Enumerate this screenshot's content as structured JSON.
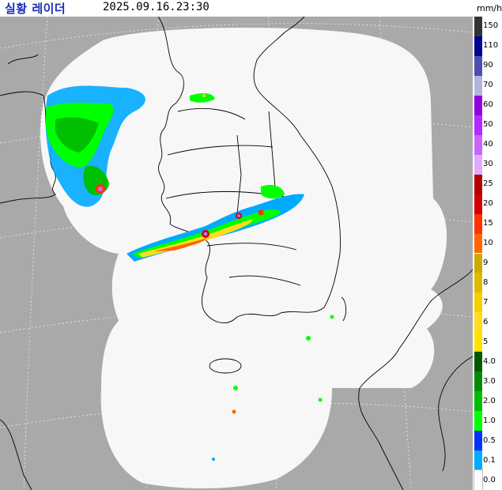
{
  "header": {
    "title": "실황 레이더",
    "timestamp": "2025.09.16.23:30",
    "unit": "mm/h"
  },
  "legend": {
    "levels": [
      {
        "label": "150",
        "color": "#333333"
      },
      {
        "label": "110",
        "color": "#000390"
      },
      {
        "label": "90",
        "color": "#4c4eb1"
      },
      {
        "label": "70",
        "color": "#b3b4de"
      },
      {
        "label": "60",
        "color": "#9300e4"
      },
      {
        "label": "50",
        "color": "#b329ff"
      },
      {
        "label": "40",
        "color": "#c963ff"
      },
      {
        "label": "30",
        "color": "#e0a9ff"
      },
      {
        "label": "25",
        "color": "#b40000"
      },
      {
        "label": "20",
        "color": "#d20000"
      },
      {
        "label": "15",
        "color": "#ff3200"
      },
      {
        "label": "10",
        "color": "#ff6600"
      },
      {
        "label": "9",
        "color": "#ccaa00"
      },
      {
        "label": "8",
        "color": "#e0b900"
      },
      {
        "label": "7",
        "color": "#f9cd00"
      },
      {
        "label": "6",
        "color": "#ffdc1f"
      },
      {
        "label": "5",
        "color": "#ffe100"
      },
      {
        "label": "4.0",
        "color": "#005a00"
      },
      {
        "label": "3.0",
        "color": "#008c00"
      },
      {
        "label": "2.0",
        "color": "#00be00"
      },
      {
        "label": "1.0",
        "color": "#00ff00"
      },
      {
        "label": "0.5",
        "color": "#0033f5"
      },
      {
        "label": "0.1",
        "color": "#00aaff"
      },
      {
        "label": "0.0",
        "color": "#ffffff"
      }
    ]
  },
  "map": {
    "coverage_color": "#f7f7f7",
    "outside_color": "#a9a9a9",
    "boundary_color": "#000000",
    "features": [
      "radar-coverage",
      "korean-peninsula",
      "jeju-island",
      "yellow-sea-rain-band",
      "central-korea-rain-band",
      "northwest-rain-area"
    ]
  }
}
